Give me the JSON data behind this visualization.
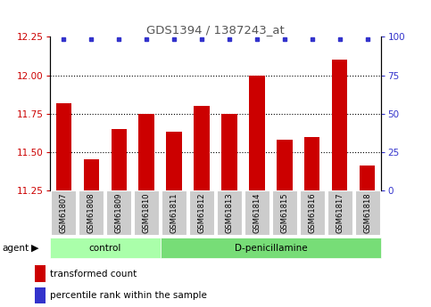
{
  "title": "GDS1394 / 1387243_at",
  "categories": [
    "GSM61807",
    "GSM61808",
    "GSM61809",
    "GSM61810",
    "GSM61811",
    "GSM61812",
    "GSM61813",
    "GSM61814",
    "GSM61815",
    "GSM61816",
    "GSM61817",
    "GSM61818"
  ],
  "bar_values": [
    11.82,
    11.45,
    11.65,
    11.75,
    11.63,
    11.8,
    11.75,
    12.0,
    11.58,
    11.6,
    12.1,
    11.41
  ],
  "bar_color": "#cc0000",
  "percentile_color": "#3333cc",
  "ylim_left": [
    11.25,
    12.25
  ],
  "ylim_right": [
    0,
    100
  ],
  "yticks_left": [
    11.25,
    11.5,
    11.75,
    12.0,
    12.25
  ],
  "yticks_right": [
    0,
    25,
    50,
    75,
    100
  ],
  "grid_values": [
    11.5,
    11.75,
    12.0
  ],
  "control_samples": 4,
  "control_label": "control",
  "treatment_label": "D-penicillamine",
  "agent_label": "agent",
  "legend_bar_label": "transformed count",
  "legend_pct_label": "percentile rank within the sample",
  "xticklabel_bg": "#cccccc",
  "title_color": "#555555",
  "left_axis_color": "#cc0000",
  "right_axis_color": "#3333cc",
  "fig_width": 4.83,
  "fig_height": 3.45,
  "dpi": 100
}
